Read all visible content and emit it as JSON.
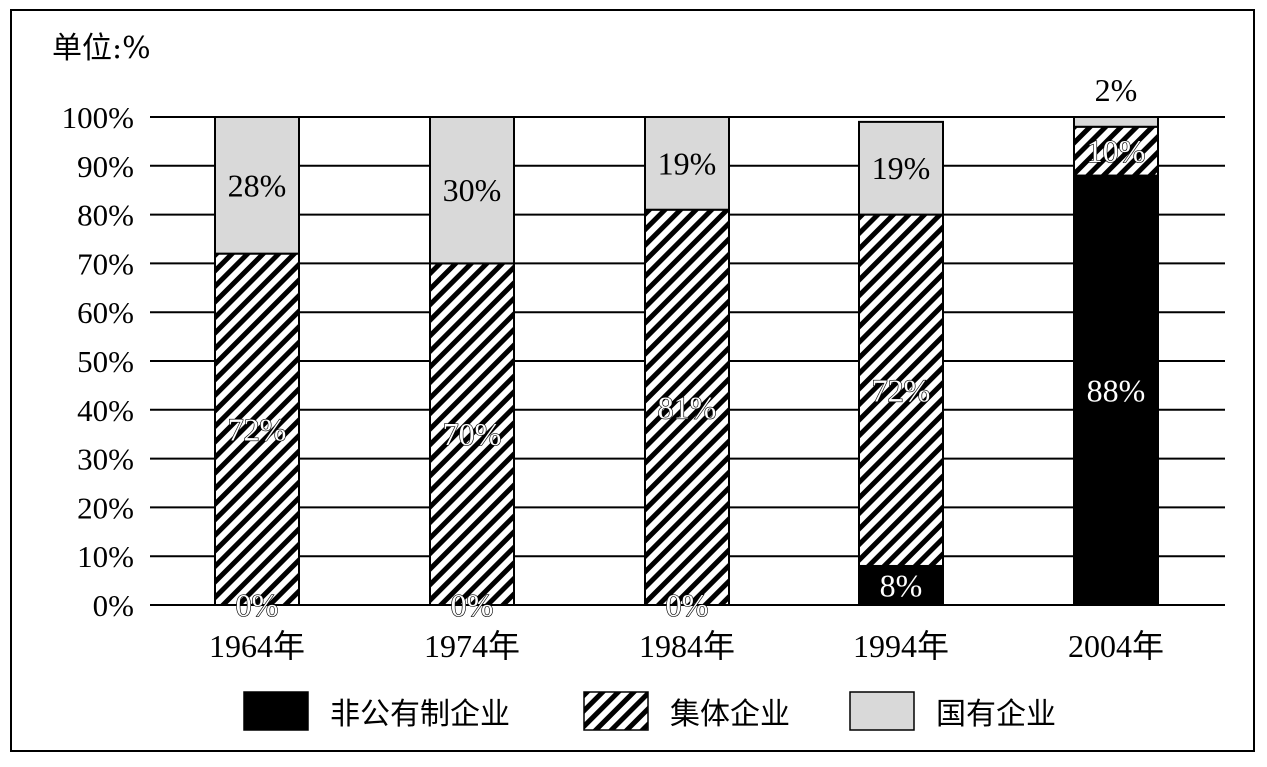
{
  "chart_data": {
    "type": "bar",
    "stacked": true,
    "unit_label": "单位:%",
    "categories": [
      "1964年",
      "1974年",
      "1984年",
      "1994年",
      "2004年"
    ],
    "ylim": [
      0,
      100
    ],
    "y_ticks": [
      "0%",
      "10%",
      "20%",
      "30%",
      "40%",
      "50%",
      "60%",
      "70%",
      "80%",
      "90%",
      "100%"
    ],
    "grid": true,
    "legend_position": "bottom",
    "series": [
      {
        "name": "非公有制企业",
        "values": [
          0,
          0,
          0,
          8,
          88
        ],
        "labels": [
          "0%",
          "0%",
          "0%",
          "8%",
          "88%"
        ],
        "fill": "#000000"
      },
      {
        "name": "集体企业",
        "values": [
          72,
          70,
          81,
          72,
          10
        ],
        "labels": [
          "72%",
          "70%",
          "81%",
          "72%",
          "10%"
        ],
        "fill": "hatch"
      },
      {
        "name": "国有企业",
        "values": [
          28,
          30,
          19,
          19,
          2
        ],
        "labels": [
          "28%",
          "30%",
          "19%",
          "19%",
          "2%"
        ],
        "fill": "#d9d9d9"
      }
    ]
  }
}
